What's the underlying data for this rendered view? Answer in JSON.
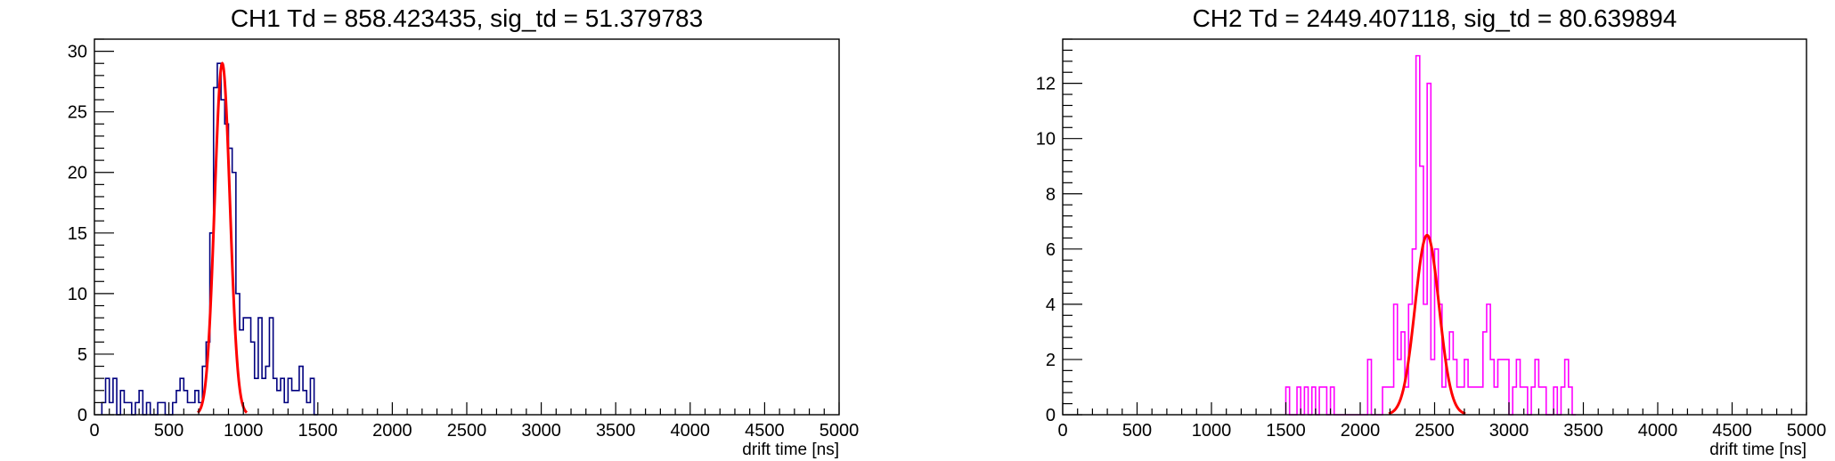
{
  "chart_data": [
    {
      "type": "histogram",
      "title": "CH1 Td = 858.423435, sig_td = 51.379783",
      "xlabel": "drift time [ns]",
      "ylabel": "",
      "xlim": [
        0,
        5000
      ],
      "ylim": [
        0,
        31
      ],
      "xticks": [
        0,
        500,
        1000,
        1500,
        2000,
        2500,
        3000,
        3500,
        4000,
        4500,
        5000
      ],
      "yticks": [
        0,
        5,
        10,
        15,
        20,
        25,
        30
      ],
      "bin_width": 25,
      "hist_color": "#00007f",
      "fit_color": "#ff0000",
      "bins": [
        [
          50,
          1
        ],
        [
          75,
          3
        ],
        [
          100,
          1
        ],
        [
          125,
          3
        ],
        [
          150,
          0
        ],
        [
          175,
          2
        ],
        [
          200,
          1
        ],
        [
          225,
          1
        ],
        [
          250,
          0
        ],
        [
          275,
          1
        ],
        [
          300,
          2
        ],
        [
          325,
          0
        ],
        [
          350,
          1
        ],
        [
          375,
          0
        ],
        [
          400,
          0
        ],
        [
          425,
          1
        ],
        [
          450,
          1
        ],
        [
          475,
          0
        ],
        [
          500,
          0
        ],
        [
          525,
          1
        ],
        [
          550,
          2
        ],
        [
          575,
          3
        ],
        [
          600,
          2
        ],
        [
          625,
          1
        ],
        [
          650,
          1
        ],
        [
          675,
          2
        ],
        [
          700,
          1
        ],
        [
          725,
          4
        ],
        [
          750,
          6
        ],
        [
          775,
          15
        ],
        [
          800,
          27
        ],
        [
          825,
          29
        ],
        [
          850,
          26
        ],
        [
          875,
          24
        ],
        [
          900,
          22
        ],
        [
          925,
          20
        ],
        [
          950,
          10
        ],
        [
          975,
          7
        ],
        [
          1000,
          8
        ],
        [
          1025,
          8
        ],
        [
          1050,
          6
        ],
        [
          1075,
          3
        ],
        [
          1100,
          8
        ],
        [
          1125,
          3
        ],
        [
          1150,
          4
        ],
        [
          1175,
          8
        ],
        [
          1200,
          3
        ],
        [
          1225,
          2
        ],
        [
          1250,
          3
        ],
        [
          1275,
          1
        ],
        [
          1300,
          3
        ],
        [
          1325,
          2
        ],
        [
          1350,
          2
        ],
        [
          1375,
          4
        ],
        [
          1400,
          2
        ],
        [
          1425,
          1
        ],
        [
          1450,
          3
        ],
        [
          1475,
          0
        ]
      ],
      "fit": {
        "function": "gaus",
        "constant": 29,
        "mean": 858.423435,
        "sigma": 51.379783
      }
    },
    {
      "type": "histogram",
      "title": "CH2 Td = 2449.407118, sig_td = 80.639894",
      "xlabel": "drift time [ns]",
      "ylabel": "",
      "xlim": [
        0,
        5000
      ],
      "ylim": [
        0,
        13.6
      ],
      "xticks": [
        0,
        500,
        1000,
        1500,
        2000,
        2500,
        3000,
        3500,
        4000,
        4500,
        5000
      ],
      "yticks": [
        0,
        2,
        4,
        6,
        8,
        10,
        12
      ],
      "bin_width": 25,
      "hist_color": "#ff00ff",
      "fit_color": "#ff0000",
      "bins": [
        [
          1500,
          1
        ],
        [
          1525,
          0
        ],
        [
          1550,
          0
        ],
        [
          1575,
          1
        ],
        [
          1600,
          0
        ],
        [
          1625,
          1
        ],
        [
          1650,
          0
        ],
        [
          1675,
          1
        ],
        [
          1700,
          0
        ],
        [
          1725,
          1
        ],
        [
          1750,
          1
        ],
        [
          1775,
          0
        ],
        [
          1800,
          1
        ],
        [
          1825,
          0
        ],
        [
          1850,
          0
        ],
        [
          1875,
          0
        ],
        [
          1900,
          0
        ],
        [
          1925,
          0
        ],
        [
          1950,
          0
        ],
        [
          1975,
          0
        ],
        [
          2000,
          0
        ],
        [
          2025,
          0
        ],
        [
          2050,
          2
        ],
        [
          2075,
          0
        ],
        [
          2100,
          0
        ],
        [
          2125,
          0
        ],
        [
          2150,
          1
        ],
        [
          2175,
          1
        ],
        [
          2200,
          1
        ],
        [
          2225,
          4
        ],
        [
          2250,
          2
        ],
        [
          2275,
          3
        ],
        [
          2300,
          1
        ],
        [
          2325,
          4
        ],
        [
          2350,
          6
        ],
        [
          2375,
          13
        ],
        [
          2400,
          9
        ],
        [
          2425,
          4
        ],
        [
          2450,
          12
        ],
        [
          2475,
          2
        ],
        [
          2500,
          6
        ],
        [
          2525,
          4
        ],
        [
          2550,
          1
        ],
        [
          2575,
          2
        ],
        [
          2600,
          3
        ],
        [
          2625,
          2
        ],
        [
          2650,
          1
        ],
        [
          2675,
          1
        ],
        [
          2700,
          2
        ],
        [
          2725,
          1
        ],
        [
          2750,
          1
        ],
        [
          2775,
          1
        ],
        [
          2800,
          1
        ],
        [
          2825,
          3
        ],
        [
          2850,
          4
        ],
        [
          2875,
          2
        ],
        [
          2900,
          1
        ],
        [
          2925,
          2
        ],
        [
          2950,
          2
        ],
        [
          2975,
          2
        ],
        [
          3000,
          0
        ],
        [
          3025,
          1
        ],
        [
          3050,
          2
        ],
        [
          3075,
          1
        ],
        [
          3100,
          1
        ],
        [
          3125,
          0
        ],
        [
          3150,
          1
        ],
        [
          3175,
          2
        ],
        [
          3200,
          1
        ],
        [
          3225,
          1
        ],
        [
          3250,
          0
        ],
        [
          3275,
          0
        ],
        [
          3300,
          1
        ],
        [
          3325,
          0
        ],
        [
          3350,
          1
        ],
        [
          3375,
          2
        ],
        [
          3400,
          1
        ],
        [
          3425,
          0
        ]
      ],
      "fit": {
        "function": "gaus",
        "constant": 6.5,
        "mean": 2449.407118,
        "sigma": 80.639894
      }
    }
  ]
}
